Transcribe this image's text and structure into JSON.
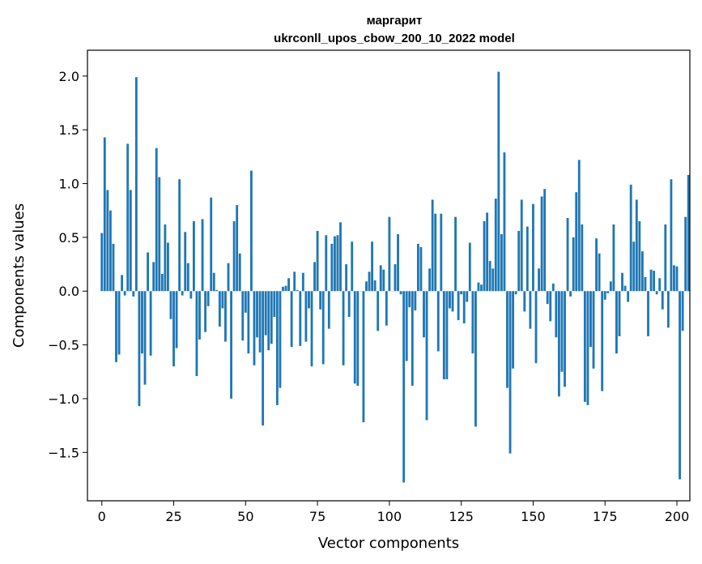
{
  "chart_data": {
    "type": "bar",
    "title": "маргарит",
    "subtitle": "ukrconll_upos_cbow_200_10_2022 model",
    "xlabel": "Vector components",
    "ylabel": "Components values",
    "xlim": [
      -5,
      204.5
    ],
    "ylim": [
      -1.95,
      2.24
    ],
    "xticks": [
      0,
      25,
      50,
      75,
      100,
      125,
      150,
      175,
      200
    ],
    "yticks": [
      -1.5,
      -1.0,
      -0.5,
      0.0,
      0.5,
      1.0,
      1.5,
      2.0
    ],
    "ytick_labels": [
      "−1.5",
      "−1.0",
      "−0.5",
      "0.0",
      "0.5",
      "1.0",
      "1.5",
      "2.0"
    ],
    "grid": false,
    "bar_color": "#1f77b4",
    "values": [
      0.54,
      1.43,
      0.94,
      0.75,
      0.44,
      -0.66,
      -0.59,
      0.15,
      -0.04,
      1.37,
      0.94,
      -0.05,
      1.99,
      -1.07,
      -0.58,
      -0.87,
      0.36,
      -0.6,
      0.27,
      1.33,
      1.06,
      0.16,
      0.62,
      0.45,
      -0.26,
      -0.7,
      -0.53,
      1.04,
      -0.04,
      0.55,
      0.26,
      -0.07,
      0.65,
      -0.79,
      -0.45,
      0.67,
      -0.38,
      -0.14,
      0.87,
      0.17,
      0.01,
      -0.33,
      -0.16,
      -0.47,
      0.26,
      -1.0,
      0.65,
      0.8,
      0.35,
      -0.46,
      -0.2,
      -0.58,
      1.12,
      -0.69,
      -0.43,
      -0.57,
      -1.25,
      -0.41,
      -0.55,
      -0.49,
      -0.24,
      -1.06,
      -0.9,
      0.04,
      0.05,
      0.12,
      -0.52,
      0.18,
      0.01,
      -0.51,
      0.17,
      -0.47,
      -0.16,
      -0.7,
      0.27,
      0.56,
      -0.17,
      -0.68,
      0.52,
      -0.35,
      0.44,
      0.51,
      0.52,
      0.64,
      -0.69,
      0.25,
      -0.24,
      0.46,
      -0.86,
      -0.88,
      0.0,
      -1.22,
      0.09,
      0.18,
      0.46,
      0.1,
      -0.37,
      0.24,
      0.2,
      -0.32,
      0.69,
      0.0,
      0.25,
      0.53,
      -0.03,
      -1.78,
      -0.65,
      -0.15,
      -0.88,
      -0.18,
      0.44,
      0.41,
      -0.43,
      -1.2,
      0.21,
      0.85,
      0.72,
      -0.56,
      0.72,
      -0.82,
      -0.82,
      -0.16,
      -0.19,
      0.69,
      -0.27,
      -0.03,
      -0.3,
      -0.1,
      0.45,
      -0.58,
      -1.26,
      0.08,
      0.06,
      0.65,
      0.73,
      0.28,
      0.21,
      0.86,
      2.04,
      0.53,
      1.29,
      -0.9,
      -1.51,
      -0.72,
      -0.03,
      0.56,
      0.85,
      -0.19,
      0.6,
      -0.35,
      0.81,
      -0.67,
      0.21,
      0.88,
      0.95,
      -0.12,
      -0.28,
      0.07,
      -0.43,
      -0.98,
      -0.75,
      -0.89,
      0.68,
      -0.05,
      0.5,
      0.92,
      1.22,
      0.62,
      -1.03,
      -1.06,
      -0.52,
      -0.72,
      0.49,
      0.35,
      -0.93,
      -0.08,
      -0.02,
      0.09,
      0.62,
      -0.58,
      -0.42,
      0.17,
      0.05,
      -0.1,
      0.99,
      0.46,
      0.85,
      0.65,
      0.37,
      0.13,
      -0.42,
      0.2,
      0.19,
      -0.03,
      0.12,
      -0.17,
      0.62,
      -0.34,
      1.04,
      0.24,
      0.23,
      -1.75,
      -0.37,
      0.69,
      1.08
    ]
  }
}
